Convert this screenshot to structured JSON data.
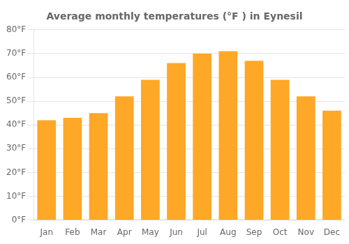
{
  "chart_data": {
    "type": "bar",
    "title": "Average monthly temperatures (°F ) in Eynesil",
    "categories": [
      "Jan",
      "Feb",
      "Mar",
      "Apr",
      "May",
      "Jun",
      "Jul",
      "Aug",
      "Sep",
      "Oct",
      "Nov",
      "Dec"
    ],
    "values": [
      42,
      43,
      45,
      52,
      59,
      66,
      70,
      71,
      67,
      59,
      52,
      46
    ],
    "color": "#FFA726",
    "ylim": [
      0,
      80
    ],
    "yticks": [
      {
        "value": 0,
        "label": "0°F"
      },
      {
        "value": 10,
        "label": "10°F"
      },
      {
        "value": 20,
        "label": "20°F"
      },
      {
        "value": 30,
        "label": "30°F"
      },
      {
        "value": 40,
        "label": "40°F"
      },
      {
        "value": 50,
        "label": "50°F"
      },
      {
        "value": 60,
        "label": "60°F"
      },
      {
        "value": 70,
        "label": "70°F"
      },
      {
        "value": 80,
        "label": "80°F"
      }
    ],
    "grid": true
  }
}
